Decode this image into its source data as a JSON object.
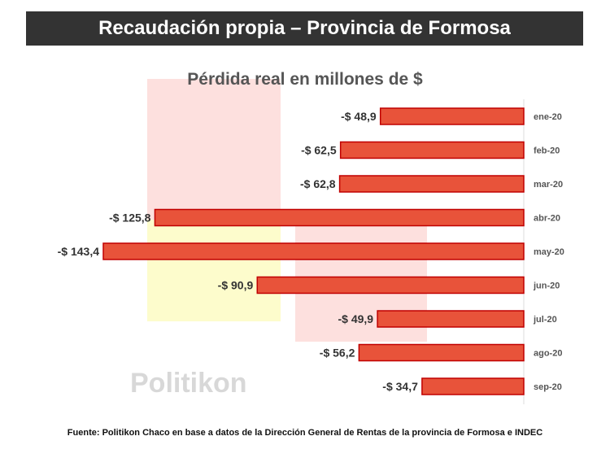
{
  "header": {
    "title": "Recaudación propia – Provincia de Formosa"
  },
  "watermark": "Politikon",
  "source": "Fuente: Politikon Chaco en base a datos de la Dirección General de Rentas de la provincia de Formosa e INDEC",
  "colors": {
    "bar": "#e8533a",
    "bar_border": "#c00000",
    "title_bg": "#333333"
  },
  "chart_data": {
    "type": "bar",
    "orientation": "horizontal",
    "title": "Pérdida real en millones de $",
    "categories": [
      "ene-20",
      "feb-20",
      "mar-20",
      "abr-20",
      "may-20",
      "jun-20",
      "jul-20",
      "ago-20",
      "sep-20"
    ],
    "values": [
      -48.9,
      -62.5,
      -62.8,
      -125.8,
      -143.4,
      -90.9,
      -49.9,
      -56.2,
      -34.7
    ],
    "labels": [
      "-$ 48,9",
      "-$ 62,5",
      "-$ 62,8",
      "-$ 125,8",
      "-$ 143,4",
      "-$ 90,9",
      "-$ 49,9",
      "-$ 56,2",
      "-$ 34,7"
    ],
    "grid": false,
    "legend": "none"
  }
}
